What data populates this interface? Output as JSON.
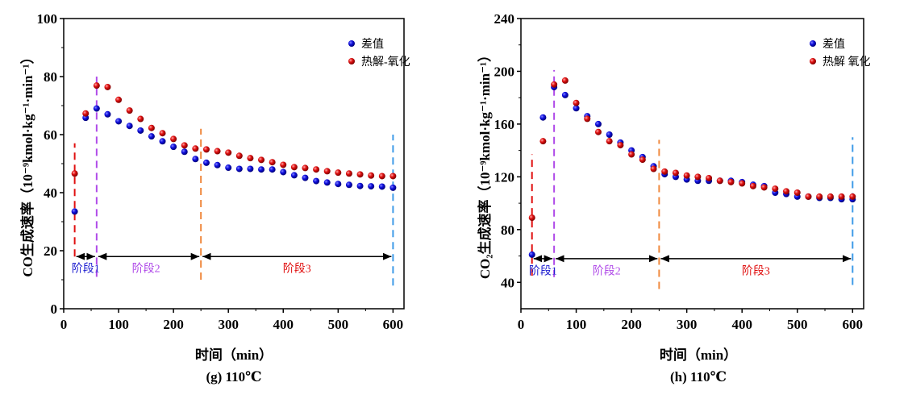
{
  "chart_data": [
    {
      "type": "scatter",
      "id": "g",
      "caption": "(g) 110℃",
      "xlabel": "时间（min）",
      "ylabel": "CO生成速率（10⁻⁹kmol·kg⁻¹·min⁻¹）",
      "xlim": [
        0,
        620
      ],
      "ylim": [
        0,
        100
      ],
      "xticks": [
        0,
        100,
        200,
        300,
        400,
        500,
        600
      ],
      "yticks": [
        0,
        20,
        40,
        60,
        80,
        100
      ],
      "grid": false,
      "legend": "top-right",
      "x": [
        20,
        40,
        60,
        80,
        100,
        120,
        140,
        160,
        180,
        200,
        220,
        240,
        260,
        280,
        300,
        320,
        340,
        360,
        380,
        400,
        420,
        440,
        460,
        480,
        500,
        520,
        540,
        560,
        580,
        600
      ],
      "series": [
        {
          "name": "差值",
          "color": "#1010e0",
          "values": [
            33.5,
            65.8,
            69,
            67,
            64.6,
            63,
            61.4,
            59.4,
            57.7,
            55.8,
            54.1,
            51.6,
            50.3,
            49.5,
            48.6,
            48.2,
            48.2,
            48,
            48,
            47.1,
            46,
            45.1,
            44,
            43.5,
            43,
            42.7,
            42.3,
            42.2,
            42.1,
            41.7
          ]
        },
        {
          "name": "热解-氧化",
          "color": "#e01010",
          "values": [
            46.6,
            67.3,
            76.9,
            76.4,
            72,
            68.3,
            65.4,
            62.3,
            60.5,
            58.5,
            56.3,
            55.2,
            54.9,
            54.3,
            53.8,
            52.7,
            51.9,
            51.3,
            50.5,
            49.6,
            48.8,
            48.5,
            48,
            47.4,
            46.9,
            46.6,
            46.3,
            45.9,
            45.7,
            45.7
          ]
        }
      ],
      "vlines": [
        {
          "x": 20,
          "color": "#e01010",
          "y_range": [
            18,
            57
          ]
        },
        {
          "x": 60,
          "color": "#b04be8",
          "y_range": [
            11,
            80
          ]
        },
        {
          "x": 250,
          "color": "#f08a40",
          "y_range": [
            10,
            62
          ]
        },
        {
          "x": 600,
          "color": "#3f9be8",
          "y_range": [
            8,
            60
          ]
        }
      ],
      "stage_arrow_y": 18,
      "stages": [
        {
          "label": "阶段1",
          "x_from": 20,
          "x_to": 60,
          "color": "#2020d0",
          "label_x": 40,
          "label_y": 14
        },
        {
          "label": "阶段2",
          "x_from": 60,
          "x_to": 250,
          "color": "#b04be8",
          "label_x": 150,
          "label_y": 14
        },
        {
          "label": "阶段3",
          "x_from": 250,
          "x_to": 600,
          "color": "#e01010",
          "label_x": 425,
          "label_y": 14
        }
      ]
    },
    {
      "type": "scatter",
      "id": "h",
      "caption": "(h) 110℃",
      "xlabel": "时间（min）",
      "ylabel": "CO₂生成速率（10⁻⁹kmol·kg⁻¹·min⁻¹）",
      "xlim": [
        0,
        620
      ],
      "ylim": [
        20,
        240
      ],
      "xticks": [
        0,
        100,
        200,
        300,
        400,
        500,
        600
      ],
      "yticks": [
        40,
        80,
        120,
        160,
        200,
        240
      ],
      "grid": false,
      "legend": "top-right",
      "x": [
        20,
        40,
        60,
        80,
        100,
        120,
        140,
        160,
        180,
        200,
        220,
        240,
        260,
        280,
        300,
        320,
        340,
        360,
        380,
        400,
        420,
        440,
        460,
        480,
        500,
        520,
        540,
        560,
        580,
        600
      ],
      "series": [
        {
          "name": "差值",
          "color": "#1010e0",
          "values": [
            61,
            165,
            188,
            182,
            172,
            166,
            160,
            152,
            146,
            140,
            135,
            128,
            122,
            120,
            118,
            117,
            117,
            117,
            117,
            116,
            114,
            113,
            108,
            107,
            105,
            105,
            104,
            104,
            103,
            103
          ]
        },
        {
          "name": "热解 氧化",
          "color": "#e01010",
          "values": [
            89,
            147,
            190,
            193,
            176,
            164,
            154,
            147,
            144,
            137,
            133,
            126,
            124,
            123,
            121,
            120,
            119,
            117,
            116,
            115,
            113,
            112,
            111,
            109,
            108,
            105,
            105,
            105,
            105,
            105
          ]
        }
      ],
      "vlines": [
        {
          "x": 20,
          "color": "#e01010",
          "y_range": [
            45,
            137
          ]
        },
        {
          "x": 60,
          "color": "#b04be8",
          "y_range": [
            44,
            201
          ]
        },
        {
          "x": 250,
          "color": "#f08a40",
          "y_range": [
            35,
            148
          ]
        },
        {
          "x": 600,
          "color": "#3f9be8",
          "y_range": [
            38,
            150
          ]
        }
      ],
      "stage_arrow_y": 58,
      "stages": [
        {
          "label": "阶段1",
          "x_from": 20,
          "x_to": 60,
          "color": "#2020d0",
          "label_x": 40,
          "label_y": 49
        },
        {
          "label": "阶段2",
          "x_from": 60,
          "x_to": 250,
          "color": "#b04be8",
          "label_x": 155,
          "label_y": 49
        },
        {
          "label": "阶段3",
          "x_from": 250,
          "x_to": 600,
          "color": "#e01010",
          "label_x": 425,
          "label_y": 49
        }
      ]
    }
  ]
}
